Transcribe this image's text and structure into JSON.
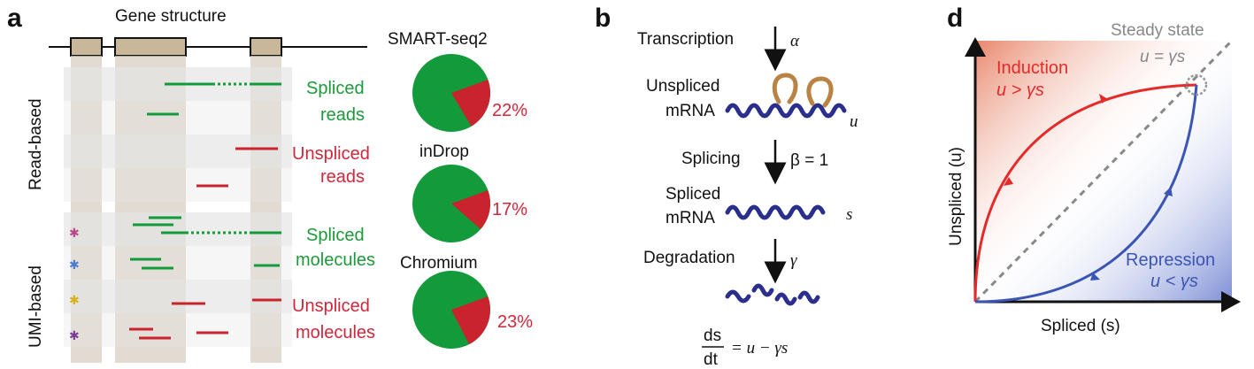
{
  "panel_a": {
    "letter": "a",
    "gene_structure_title": "Gene structure",
    "group_read": "Read-based",
    "group_umi": "UMI-based",
    "labels": {
      "spliced_reads_1": "Spliced",
      "spliced_reads_2": "reads",
      "unspliced_reads_1": "Unspliced",
      "unspliced_reads_2": "reads",
      "spliced_mol_1": "Spliced",
      "spliced_mol_2": "molecules",
      "unspliced_mol_1": "Unspliced",
      "unspliced_mol_2": "molecules"
    },
    "pies": [
      {
        "platform": "SMART-seq2",
        "unspliced_percent": 22,
        "label": "22%"
      },
      {
        "platform": "inDrop",
        "unspliced_percent": 17,
        "label": "17%"
      },
      {
        "platform": "Chromium",
        "unspliced_percent": 23,
        "label": "23%"
      }
    ],
    "colors": {
      "spliced": "#129a3b",
      "unspliced": "#c9232e",
      "exon": "#c9b79a"
    }
  },
  "panel_b": {
    "letter": "b",
    "transcription": "Transcription",
    "alpha": "α",
    "unspliced_1": "Unspliced",
    "unspliced_2": "mRNA",
    "u_sym": "u",
    "splicing": "Splicing",
    "beta": "β = 1",
    "spliced_1": "Spliced",
    "spliced_2": "mRNA",
    "s_sym": "s",
    "degradation": "Degradation",
    "gamma": "γ",
    "eq_num": "ds",
    "eq_den": "dt",
    "eq_rhs": "= u − γs"
  },
  "panel_d": {
    "letter": "d",
    "steady_state": "Steady state",
    "steady_eq": "u = γs",
    "induction": "Induction",
    "induction_cond": "u > γs",
    "repression": "Repression",
    "repression_cond": "u < γs",
    "xlabel": "Spliced (s)",
    "ylabel": "Unspliced (u)",
    "colors": {
      "induction": "#e52a2a",
      "repression": "#3b55b5"
    }
  }
}
